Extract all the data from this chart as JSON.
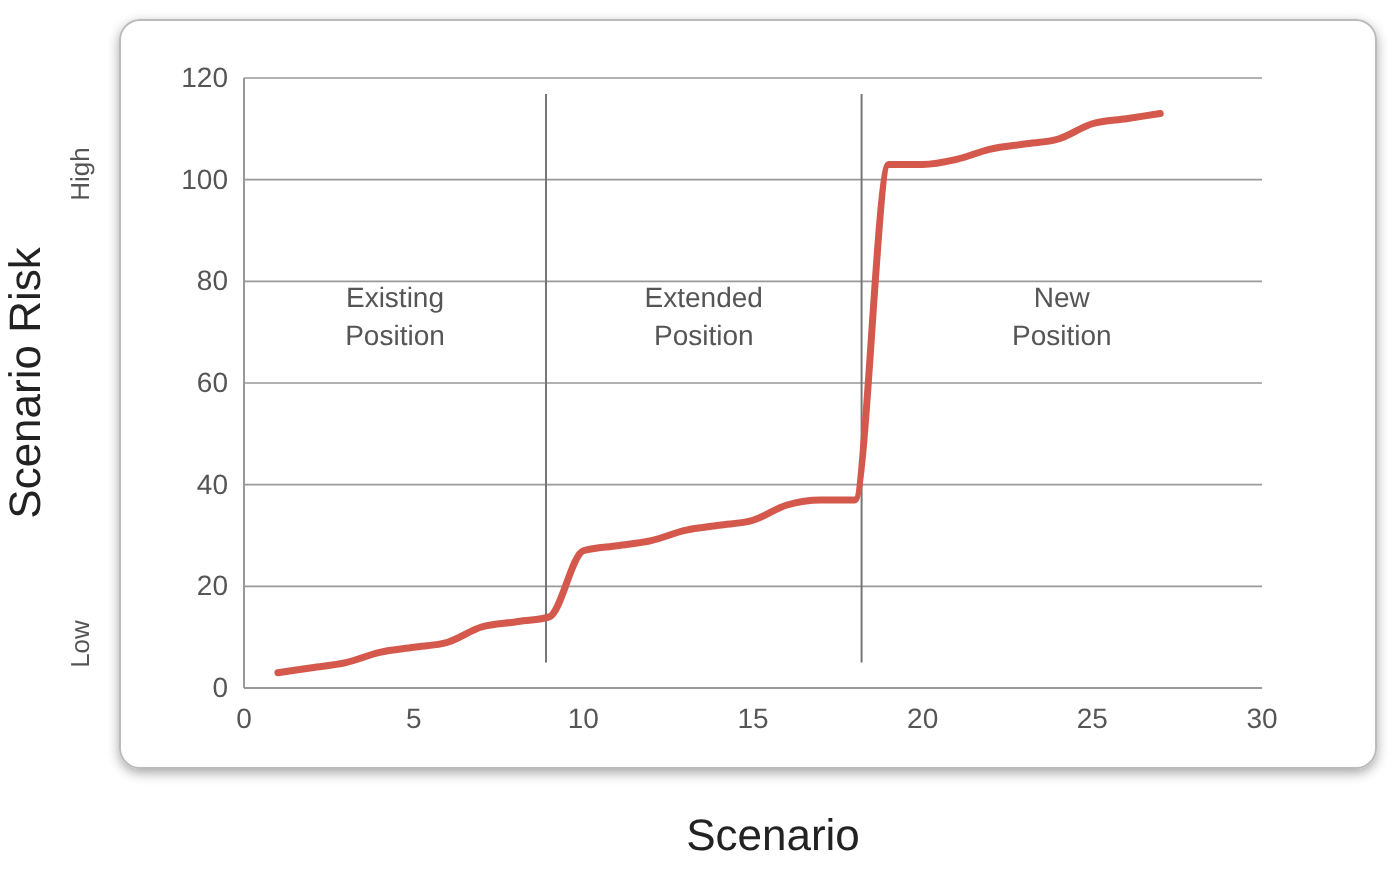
{
  "chart_data": {
    "type": "line",
    "xlabel": "Scenario",
    "ylabel": "Scenario Risk",
    "x": [
      1,
      2,
      3,
      4,
      5,
      6,
      7,
      8,
      9,
      10,
      11,
      12,
      13,
      14,
      15,
      16,
      17,
      18,
      19,
      20,
      21,
      22,
      23,
      24,
      25,
      26,
      27
    ],
    "series": [
      {
        "color": "#d4594c",
        "values": [
          3,
          4,
          5,
          7,
          8,
          9,
          12,
          13,
          14,
          27,
          28,
          29,
          31,
          32,
          33,
          36,
          37,
          37,
          103,
          103,
          104,
          106,
          107,
          108,
          111,
          112,
          113
        ]
      }
    ],
    "xlim": [
      0,
      30
    ],
    "xticks": [
      0,
      5,
      10,
      15,
      20,
      25,
      30
    ],
    "ylim": [
      0,
      120
    ],
    "yticks": [
      0,
      20,
      40,
      60,
      80,
      100,
      120
    ],
    "grid": "y",
    "marker": "none",
    "line_style": "solid",
    "ref_lines": [
      {
        "axis": "x",
        "value": 8.9,
        "color": "#777777"
      },
      {
        "axis": "x",
        "value": 18.2,
        "color": "#777777"
      }
    ],
    "annotations": [
      "Existing\nPosition",
      "Extended\nPosition",
      "New\nPosition",
      "Low",
      "High"
    ]
  }
}
